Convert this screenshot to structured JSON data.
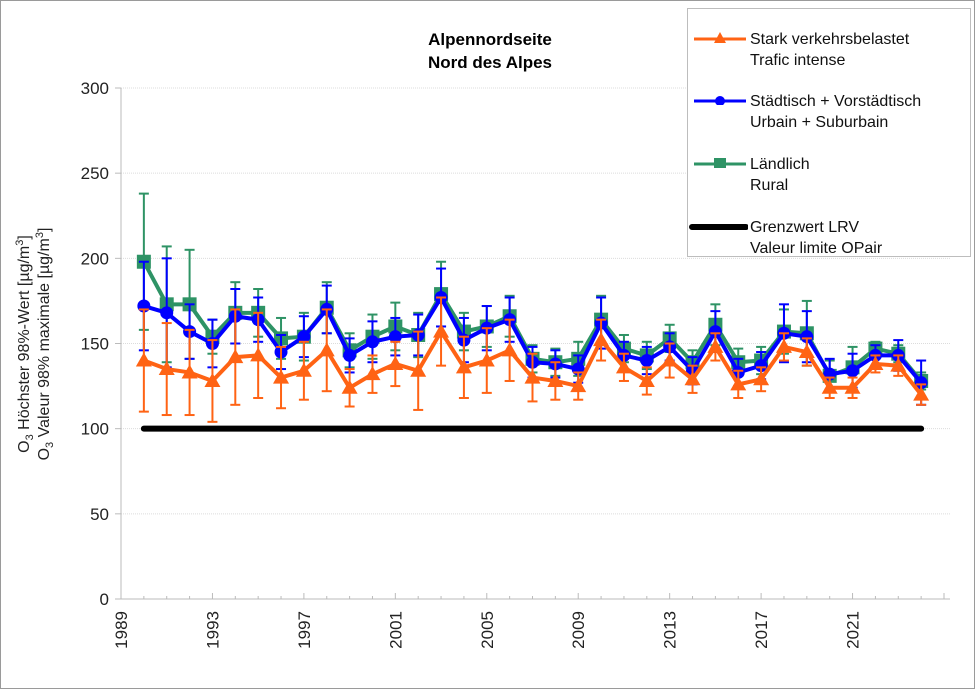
{
  "chart_data": {
    "type": "line",
    "title": [
      "Alpennordseite",
      "Nord des Alpes"
    ],
    "ylabel": [
      "O3 Höchster 98%-Wert [µg/m3]",
      "O3 Valeur 98% maximale [µg/m3]"
    ],
    "xlabel": "",
    "ylim": [
      0,
      300
    ],
    "xlim": [
      1989,
      2025
    ],
    "yticks": [
      0,
      50,
      100,
      150,
      200,
      250,
      300
    ],
    "xticks": [
      1989,
      1993,
      1997,
      2001,
      2005,
      2009,
      2013,
      2017,
      2021
    ],
    "grid": true,
    "legend_position": "top-right",
    "x": [
      1990,
      1991,
      1992,
      1993,
      1994,
      1995,
      1996,
      1997,
      1998,
      1999,
      2000,
      2001,
      2002,
      2003,
      2004,
      2005,
      2006,
      2007,
      2008,
      2009,
      2010,
      2011,
      2012,
      2013,
      2014,
      2015,
      2016,
      2017,
      2018,
      2019,
      2020,
      2021,
      2022,
      2023,
      2024
    ],
    "series": [
      {
        "name": "Stark verkehrsbelastet / Trafic intense",
        "color": "#FF6314",
        "marker": "triangle",
        "values": [
          140,
          135,
          133,
          128,
          142,
          143,
          130,
          134,
          146,
          124,
          132,
          138,
          134,
          157,
          136,
          140,
          146,
          130,
          128,
          125,
          152,
          136,
          128,
          140,
          129,
          148,
          126,
          129,
          148,
          145,
          124,
          124,
          138,
          137,
          120
        ],
        "err": [
          30,
          27,
          25,
          24,
          28,
          25,
          18,
          17,
          24,
          11,
          11,
          13,
          23,
          20,
          18,
          19,
          18,
          14,
          11,
          8,
          12,
          8,
          8,
          10,
          8,
          8,
          8,
          7,
          8,
          8,
          6,
          6,
          5,
          6,
          6
        ]
      },
      {
        "name": "Städtisch + Vorstädtisch / Urbain + Suburbain",
        "color": "#0000FF",
        "marker": "circle",
        "values": [
          172,
          168,
          157,
          150,
          166,
          164,
          145,
          154,
          170,
          143,
          151,
          154,
          155,
          177,
          152,
          159,
          164,
          139,
          138,
          135,
          162,
          143,
          140,
          148,
          134,
          157,
          133,
          137,
          156,
          154,
          132,
          134,
          143,
          143,
          127
        ],
        "err": [
          26,
          32,
          16,
          14,
          16,
          13,
          10,
          12,
          14,
          10,
          12,
          11,
          12,
          17,
          13,
          13,
          13,
          9,
          8,
          8,
          15,
          8,
          8,
          8,
          8,
          12,
          8,
          8,
          17,
          15,
          9,
          10,
          6,
          9,
          13
        ]
      },
      {
        "name": "Ländlich / Rural",
        "color": "#2E9365",
        "marker": "square",
        "values": [
          198,
          173,
          173,
          154,
          168,
          168,
          153,
          154,
          171,
          146,
          154,
          160,
          155,
          179,
          157,
          160,
          166,
          141,
          139,
          141,
          164,
          147,
          143,
          153,
          139,
          161,
          139,
          140,
          157,
          156,
          131,
          136,
          147,
          144,
          128
        ],
        "err": [
          40,
          34,
          32,
          10,
          18,
          14,
          12,
          14,
          15,
          10,
          13,
          14,
          13,
          19,
          11,
          12,
          12,
          8,
          8,
          10,
          14,
          8,
          8,
          8,
          7,
          12,
          8,
          8,
          13,
          19,
          9,
          12,
          4,
          5,
          5
        ]
      },
      {
        "name": "Grenzwert LRV / Valeur limite OPair",
        "color": "#000000",
        "marker": "none",
        "values": [
          100,
          100,
          100,
          100,
          100,
          100,
          100,
          100,
          100,
          100,
          100,
          100,
          100,
          100,
          100,
          100,
          100,
          100,
          100,
          100,
          100,
          100,
          100,
          100,
          100,
          100,
          100,
          100,
          100,
          100,
          100,
          100,
          100,
          100,
          100
        ]
      }
    ]
  },
  "legend": [
    {
      "line1": "Stark verkehrsbelastet",
      "line2": "Trafic intense",
      "color": "#FF6314",
      "marker": "triangle"
    },
    {
      "line1": "Städtisch + Vorstädtisch",
      "line2": "Urbain + Suburbain",
      "color": "#0000FF",
      "marker": "circle"
    },
    {
      "line1": "Ländlich",
      "line2": "Rural",
      "color": "#2E9365",
      "marker": "square"
    },
    {
      "line1": "Grenzwert LRV",
      "line2": "Valeur limite OPair",
      "color": "#000000",
      "marker": "none"
    }
  ]
}
